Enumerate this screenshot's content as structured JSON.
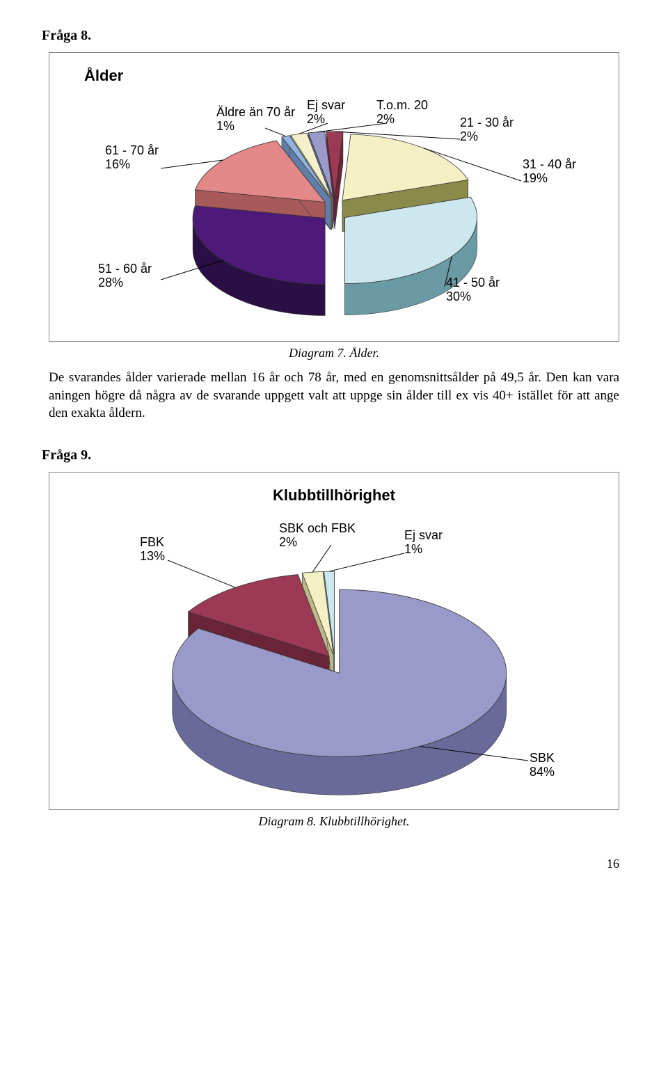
{
  "page_number": "16",
  "q8": {
    "heading": "Fråga 8.",
    "chart_title": "Ålder",
    "caption": "Diagram 7. Ålder.",
    "slices": [
      {
        "label": "51 - 60 år\n28%",
        "value": 28,
        "color": "#4d1a7a",
        "side": "#2a0f44"
      },
      {
        "label": "61 - 70 år\n16%",
        "value": 16,
        "color": "#e28888",
        "side": "#a85a5a"
      },
      {
        "label": "Äldre än 70 år\n1%",
        "value": 1,
        "color": "#8fb4e0",
        "side": "#5f7ea8"
      },
      {
        "label": "Ej svar\n2%",
        "value": 2,
        "color": "#f4f0cc",
        "side": "#bcb88a"
      },
      {
        "label": "T.o.m. 20\n2%",
        "value": 2,
        "color": "#9a9aca",
        "side": "#6a6a9a"
      },
      {
        "label": "21 - 30 år\n2%",
        "value": 2,
        "color": "#9c3a55",
        "side": "#6a2438"
      },
      {
        "label": "31 - 40 år\n19%",
        "value": 19,
        "color": "#f4f0c4",
        "side": "#8a8a4a"
      },
      {
        "label": "41 - 50 år\n30%",
        "value": 30,
        "color": "#cce8ee",
        "side": "#6a9aa4"
      }
    ],
    "body_text": "De svarandes ålder varierade mellan 16 år och 78 år, med en genomsnittsålder på 49,5 år. Den kan vara aningen högre då några av de svarande uppgett valt att uppge sin ålder till ex vis 40+ istället för att ange den exakta åldern."
  },
  "q9": {
    "heading": "Fråga 9.",
    "chart_title": "Klubbtillhörighet",
    "caption": "Diagram 8. Klubbtillhörighet.",
    "slices": [
      {
        "label": "FBK\n13%",
        "value": 13,
        "color": "#9c3a55",
        "side": "#6a2438"
      },
      {
        "label": "SBK och FBK\n2%",
        "value": 2,
        "color": "#f4f0c4",
        "side": "#bcb88a"
      },
      {
        "label": "Ej svar\n1%",
        "value": 1,
        "color": "#cce8ee",
        "side": "#8ab4be"
      },
      {
        "label": "SBK\n84%",
        "value": 84,
        "color": "#9a9aca",
        "side": "#6a6a9a"
      }
    ]
  }
}
